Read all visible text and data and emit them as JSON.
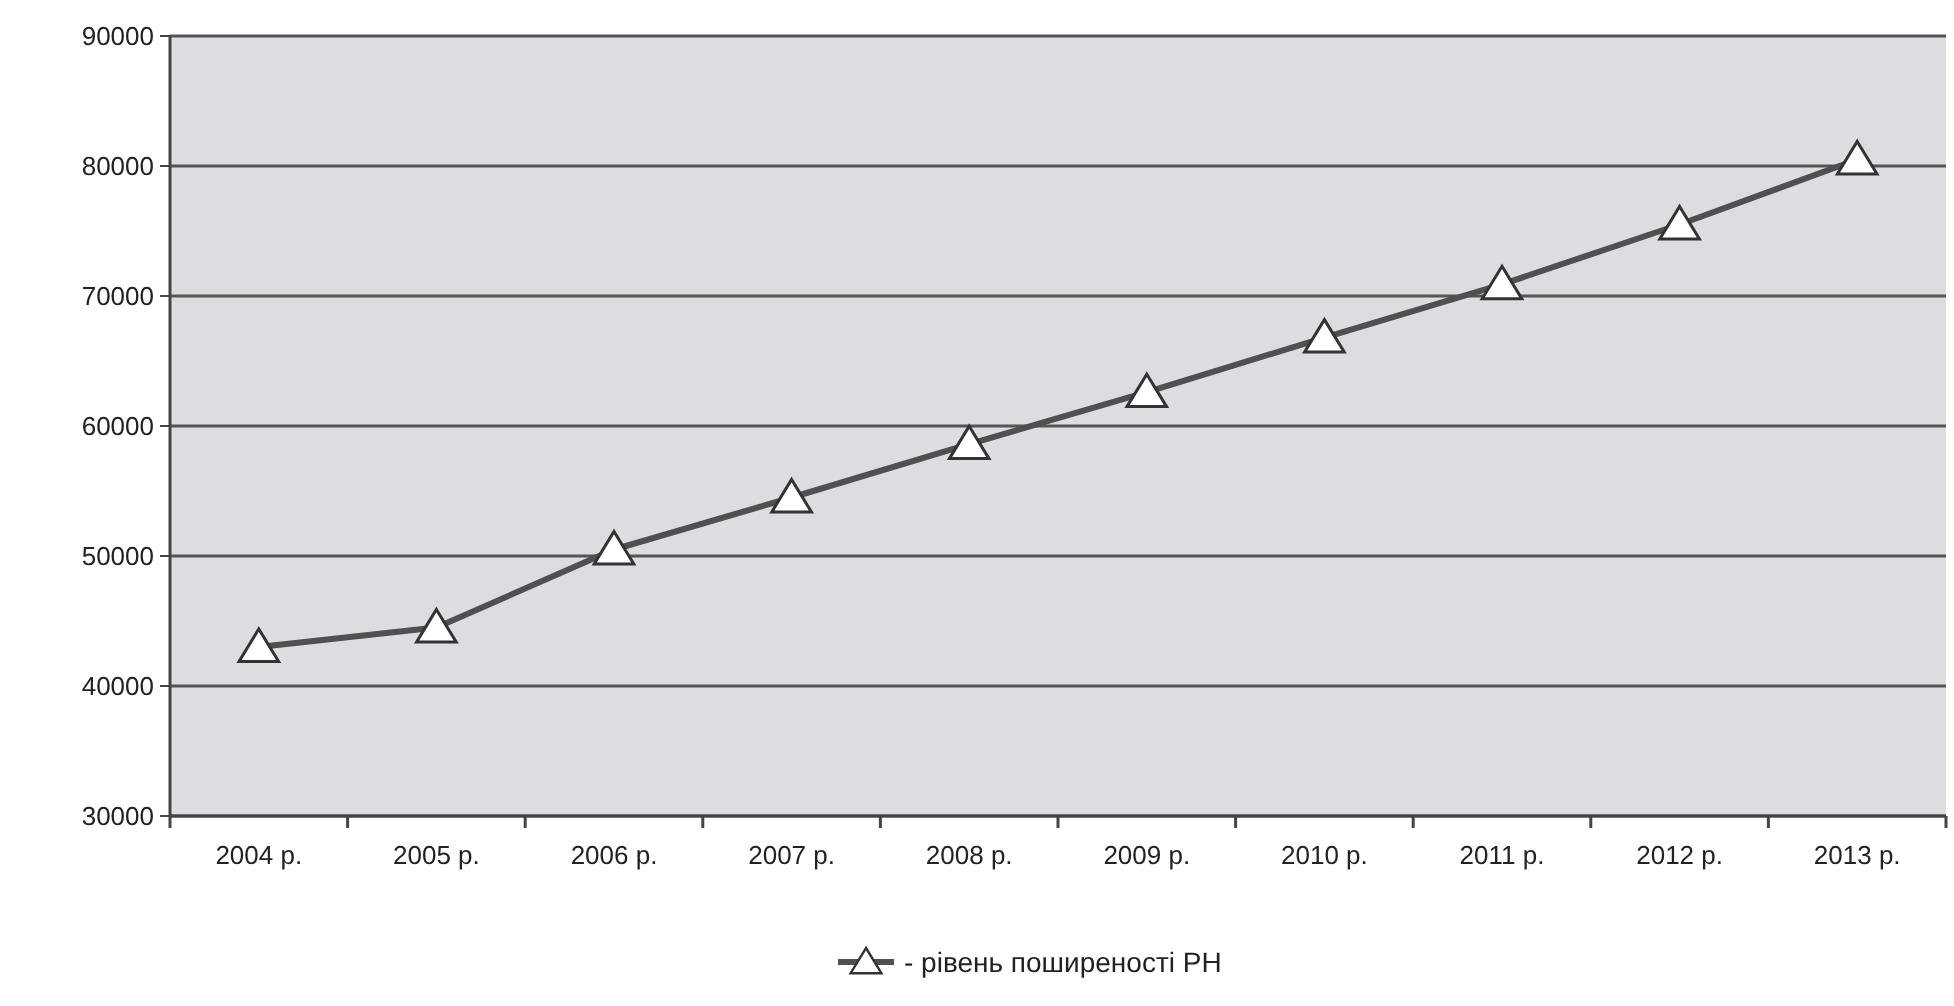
{
  "chart_data": {
    "type": "line",
    "categories": [
      "2004 р.",
      "2005 р.",
      "2006 р.",
      "2007 р.",
      "2008 р.",
      "2009 р.",
      "2010 р.",
      "2011 р.",
      "2012 р.",
      "2013 р."
    ],
    "series": [
      {
        "name": "- рівень поширеності РН",
        "color": "#505050",
        "values": [
          43000,
          44500,
          50500,
          54500,
          58600,
          62600,
          66800,
          70900,
          75500,
          80500
        ]
      }
    ],
    "ylim": [
      30000,
      90000
    ],
    "yticks": [
      30000,
      40000,
      50000,
      60000,
      70000,
      80000,
      90000
    ],
    "grid": "y",
    "legend": "bottom",
    "marker": "triangle",
    "line_style": "solid"
  }
}
